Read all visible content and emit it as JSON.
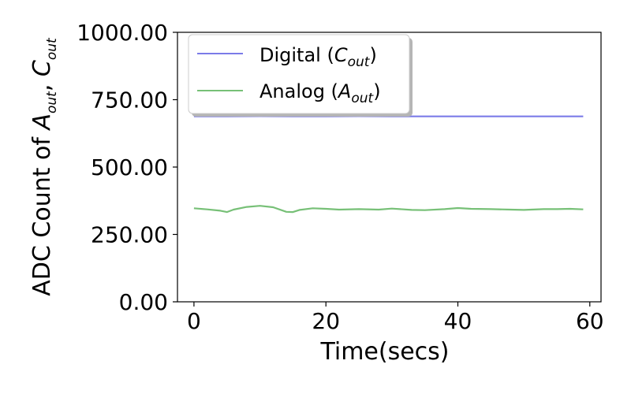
{
  "chart_data": {
    "type": "line",
    "title": "",
    "xlabel": "Time(secs)",
    "ylabel_parts": {
      "prefix": "ADC Count of ",
      "a_symbol": "A",
      "a_sub": "out",
      "separator": ", ",
      "c_symbol": "C",
      "c_sub": "out"
    },
    "xlim": [
      -2.5,
      61.7
    ],
    "ylim": [
      0,
      1000
    ],
    "xticks": [
      0,
      20,
      40,
      60
    ],
    "yticks": [
      0,
      250,
      500,
      750,
      1000
    ],
    "ytick_labels": [
      "0.00",
      "250.00",
      "500.00",
      "750.00",
      "1000.00"
    ],
    "xtick_labels": [
      "0",
      "20",
      "40",
      "60"
    ],
    "grid": false,
    "legend_position": "top-left",
    "series": [
      {
        "name_parts": {
          "label": "Digital (",
          "symbol": "C",
          "sub": "out",
          "close": ")"
        },
        "color": "#7b7be8",
        "x": [
          0,
          5,
          10,
          15,
          20,
          25,
          30,
          35,
          40,
          45,
          50,
          55,
          59
        ],
        "y": [
          688,
          688,
          689,
          688,
          688,
          689,
          688,
          688,
          688,
          688,
          688,
          688,
          688
        ]
      },
      {
        "name_parts": {
          "label": "Analog (",
          "symbol": "A",
          "sub": "out",
          "close": ")"
        },
        "color": "#77c077",
        "x": [
          0,
          2,
          4,
          5,
          6,
          8,
          10,
          12,
          14,
          15,
          16,
          18,
          20,
          22,
          25,
          28,
          30,
          33,
          35,
          38,
          40,
          42,
          45,
          48,
          50,
          53,
          55,
          57,
          59
        ],
        "y": [
          347,
          343,
          338,
          333,
          342,
          352,
          356,
          351,
          334,
          333,
          341,
          347,
          345,
          342,
          344,
          342,
          346,
          341,
          340,
          344,
          348,
          345,
          344,
          342,
          341,
          344,
          344,
          345,
          343
        ]
      }
    ]
  }
}
